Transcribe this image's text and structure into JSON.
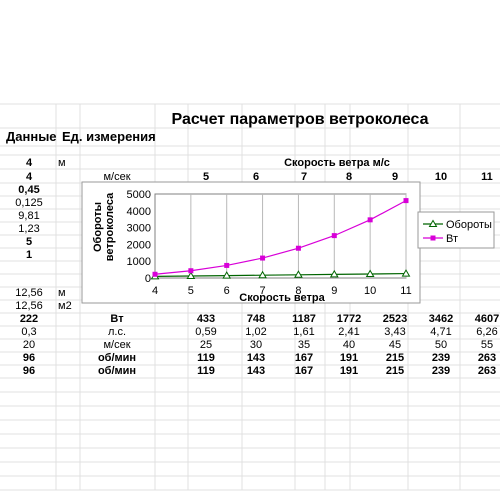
{
  "title": "Расчет параметров ветроколеса",
  "left_headers": {
    "data": "Данные",
    "unit": "Ед. измерения"
  },
  "left_rows": [
    {
      "value": "4",
      "unit": "м",
      "bold": true
    },
    {
      "value": "4",
      "unit": "",
      "bold": true
    },
    {
      "value": "0,45",
      "unit": "",
      "bold": true
    },
    {
      "value": "0,125",
      "unit": "",
      "bold": false
    },
    {
      "value": "9,81",
      "unit": "",
      "bold": false
    },
    {
      "value": "1,23",
      "unit": "",
      "bold": false
    },
    {
      "value": "5",
      "unit": "",
      "bold": true
    },
    {
      "value": "1",
      "unit": "",
      "bold": true
    },
    {
      "value": "",
      "unit": "",
      "bold": false
    },
    {
      "value": "12,56",
      "unit": "м",
      "bold": false
    },
    {
      "value": "12,56",
      "unit": "м2",
      "bold": false
    },
    {
      "value": "222",
      "unit": "",
      "bold": true
    },
    {
      "value": "0,3",
      "unit": "",
      "bold": false
    },
    {
      "value": "20",
      "unit": "",
      "bold": false
    },
    {
      "value": "96",
      "unit": "",
      "bold": true
    },
    {
      "value": "96",
      "unit": "",
      "bold": true
    }
  ],
  "speed_header": "Скорость ветра м/с",
  "speed_row": {
    "unit": "м/сек",
    "values": [
      "5",
      "6",
      "7",
      "8",
      "9",
      "10",
      "11"
    ]
  },
  "result_rows": [
    {
      "unit": "Вт",
      "values": [
        "433",
        "748",
        "1187",
        "1772",
        "2523",
        "3462",
        "4607"
      ],
      "bold": true
    },
    {
      "unit": "л.с.",
      "values": [
        "0,59",
        "1,02",
        "1,61",
        "2,41",
        "3,43",
        "4,71",
        "6,26"
      ],
      "bold": false
    },
    {
      "unit": "м/сек",
      "values": [
        "25",
        "30",
        "35",
        "40",
        "45",
        "50",
        "55"
      ],
      "bold": false
    },
    {
      "unit": "об/мин",
      "values": [
        "119",
        "143",
        "167",
        "191",
        "215",
        "239",
        "263"
      ],
      "bold": true
    },
    {
      "unit": "об/мин",
      "values": [
        "119",
        "143",
        "167",
        "191",
        "215",
        "239",
        "263"
      ],
      "bold": true
    }
  ],
  "colors": {
    "obороты": "#006400",
    "vt": "#d800d8",
    "grid": "#e0e0e0"
  },
  "chart_data": {
    "type": "line",
    "xlabel": "Скорость ветра",
    "ylabel_lines": [
      "Обороты",
      "ветроколеса"
    ],
    "x": [
      4,
      5,
      6,
      7,
      8,
      9,
      10,
      11
    ],
    "xlim": [
      4,
      11
    ],
    "ylim": [
      0,
      5000
    ],
    "y_ticks": [
      0,
      1000,
      2000,
      3000,
      4000,
      5000
    ],
    "x_ticks": [
      4,
      5,
      6,
      7,
      8,
      9,
      10,
      11
    ],
    "grid": "vertical",
    "legend_position": "right",
    "series": [
      {
        "name": "Обороты",
        "marker": "triangle",
        "color": "#006400",
        "values": [
          96,
          119,
          143,
          167,
          191,
          215,
          239,
          263
        ]
      },
      {
        "name": "Вт",
        "marker": "square",
        "color": "#d800d8",
        "values": [
          222,
          433,
          748,
          1187,
          1772,
          2523,
          3462,
          4607
        ]
      }
    ]
  }
}
